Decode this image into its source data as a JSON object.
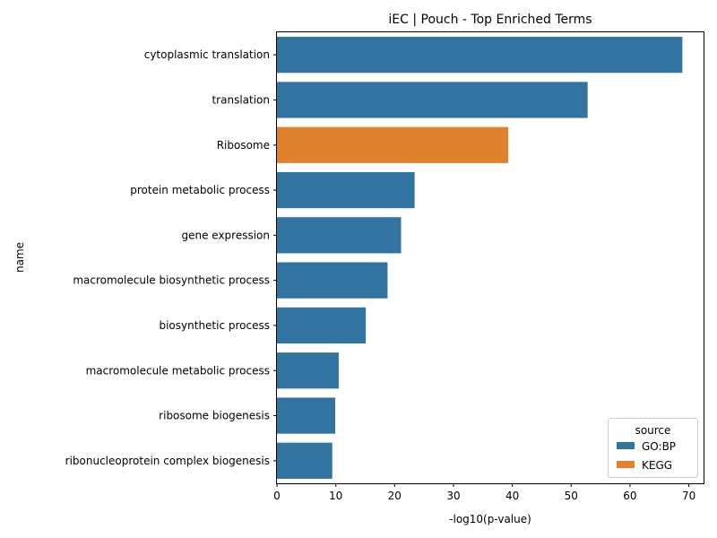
{
  "chart_data": {
    "type": "bar",
    "orientation": "horizontal",
    "title": "iEC | Pouch - Top Enriched Terms",
    "xlabel": "-log10(p-value)",
    "ylabel": "name",
    "xlim": [
      0,
      72.5
    ],
    "xticks": [
      0,
      10,
      20,
      30,
      40,
      50,
      60,
      70
    ],
    "categories": [
      "cytoplasmic translation",
      "translation",
      "Ribosome",
      "protein metabolic process",
      "gene expression",
      "macromolecule biosynthetic process",
      "biosynthetic process",
      "macromolecule metabolic process",
      "ribosome biogenesis",
      "ribonucleoprotein complex biogenesis"
    ],
    "values": [
      68.9,
      52.8,
      39.3,
      23.4,
      21.1,
      18.8,
      15.1,
      10.5,
      9.9,
      9.4
    ],
    "source": [
      "GO:BP",
      "GO:BP",
      "KEGG",
      "GO:BP",
      "GO:BP",
      "GO:BP",
      "GO:BP",
      "GO:BP",
      "GO:BP",
      "GO:BP"
    ],
    "legend": {
      "title": "source",
      "placement": "lower-right",
      "entries": [
        {
          "name": "GO:BP",
          "color": "#3274a1"
        },
        {
          "name": "KEGG",
          "color": "#e1812c"
        }
      ]
    },
    "grid": false
  }
}
